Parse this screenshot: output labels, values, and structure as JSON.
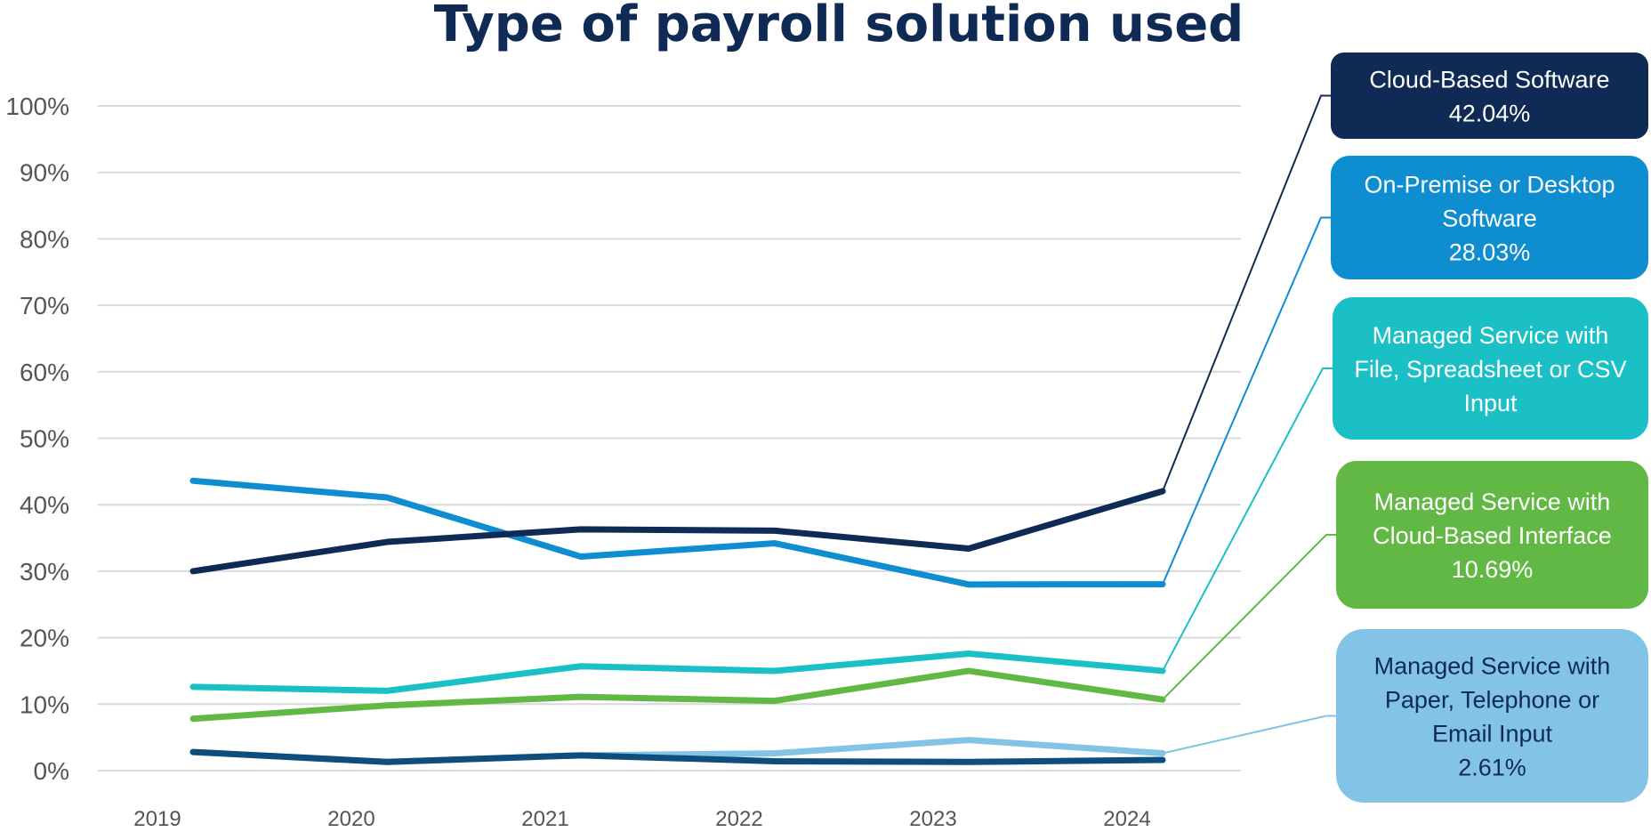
{
  "chart_data": {
    "type": "line",
    "title": "Type of payroll solution used",
    "xlabel": "",
    "ylabel": "",
    "x": [
      "2019",
      "2020",
      "2021",
      "2022",
      "2023",
      "2024"
    ],
    "ylim": [
      0,
      100
    ],
    "yticks": [
      "0%",
      "10%",
      "20%",
      "30%",
      "40%",
      "50%",
      "60%",
      "70%",
      "80%",
      "90%",
      "100%"
    ],
    "grid": true,
    "legend": "right-callouts",
    "series": [
      {
        "name": "Managed Service with Paper, Telephone or Email Input",
        "label_lines": [
          "Managed Service with",
          "Paper, Telephone or",
          "Email Input",
          "2.61%"
        ],
        "values": [
          2.8,
          1.3,
          2.3,
          2.6,
          4.6,
          2.61
        ],
        "color": "#82c3e6",
        "text_color": "#0e2a55"
      },
      {
        "name": "",
        "label_lines": [],
        "values": [
          2.8,
          1.3,
          2.3,
          1.4,
          1.3,
          1.6
        ],
        "color": "#0e4d7c",
        "text_color": "#ffffff"
      },
      {
        "name": "Managed Service with Cloud-Based Interface",
        "label_lines": [
          "Managed Service with",
          "Cloud-Based Interface",
          "10.69%"
        ],
        "values": [
          7.8,
          9.8,
          11.1,
          10.5,
          15.0,
          10.69
        ],
        "color": "#62b845",
        "text_color": "#ffffff"
      },
      {
        "name": "Managed Service with File, Spreadsheet or CSV Input",
        "label_lines": [
          "Managed Service with",
          "File, Spreadsheet or CSV",
          "Input"
        ],
        "values": [
          12.6,
          12.0,
          15.7,
          15.0,
          17.6,
          15.0
        ],
        "color": "#1bbfc6",
        "text_color": "#ffffff"
      },
      {
        "name": "On-Premise or Desktop Software",
        "label_lines": [
          "On-Premise or Desktop",
          "Software",
          "28.03%"
        ],
        "values": [
          43.6,
          41.1,
          32.2,
          34.2,
          28.0,
          28.03
        ],
        "color": "#0e8ed0",
        "text_color": "#ffffff"
      },
      {
        "name": "Cloud-Based Software",
        "label_lines": [
          "Cloud-Based Software",
          "42.04%"
        ],
        "values": [
          30.0,
          34.4,
          36.3,
          36.1,
          33.4,
          42.04
        ],
        "color": "#0e2a55",
        "text_color": "#ffffff"
      }
    ]
  }
}
